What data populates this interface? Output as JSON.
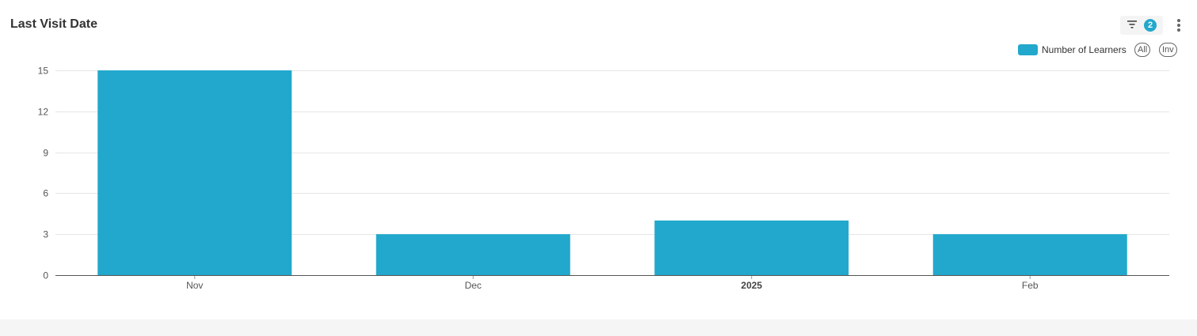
{
  "header": {
    "title": "Last Visit Date",
    "filter_icon": "filter-icon",
    "filter_count": "2",
    "more_icon": "more-vertical-icon"
  },
  "legend": {
    "label": "Number of Learners",
    "all_label": "All",
    "inv_label": "Inv"
  },
  "colors": {
    "bar": "#22a8cc",
    "grid": "#e6e6e6",
    "axis": "#555555"
  },
  "chart_data": {
    "type": "bar",
    "categories": [
      "Nov",
      "Dec",
      "2025",
      "Feb"
    ],
    "bold_categories": [
      "2025"
    ],
    "series": [
      {
        "name": "Number of Learners",
        "values": [
          15,
          3,
          4,
          3
        ]
      }
    ],
    "yticks": [
      0,
      3,
      6,
      9,
      12,
      15
    ],
    "ylim": [
      0,
      15
    ],
    "grid": true,
    "legend_position": "top-right"
  }
}
